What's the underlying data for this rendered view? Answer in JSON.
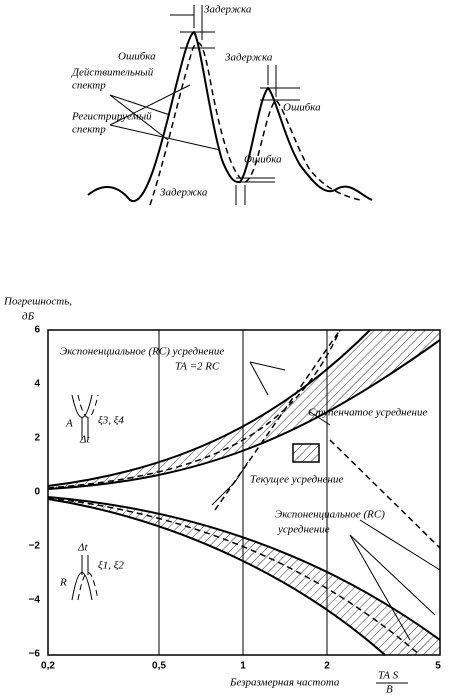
{
  "top_figure": {
    "labels": [
      "Задержка",
      "Ошибка",
      "Задержка",
      "Действительный",
      "спектр",
      "Регистрируемый",
      "спектр",
      "Ошибка",
      "Ошибка",
      "Задержка"
    ]
  },
  "bottom_chart": {
    "y_axis": {
      "title": [
        "Погрешность,",
        "дБ"
      ],
      "ticks": [
        "6",
        "4",
        "2",
        "0",
        "−2",
        "−4",
        "−6"
      ]
    },
    "x_axis": {
      "title": "Безразмерная частота",
      "formula_top": "TA S",
      "formula_bottom": "B",
      "ticks": [
        "0,2",
        "0,5",
        "1",
        "2",
        "5"
      ]
    },
    "annotations": [
      "Экспоненциальное (RC) усреднение",
      "TA =2 RC",
      "Ступенчатое усреднение",
      "Текущее усреднение",
      "Экспоненциальное (RC)",
      "усреднение"
    ],
    "inset_a": {
      "letter": "A",
      "delta": "Δt",
      "xi": "ξ3, ξ4"
    },
    "inset_r": {
      "letter": "R",
      "delta": "Δt",
      "xi": "ξ1, ξ2"
    }
  }
}
